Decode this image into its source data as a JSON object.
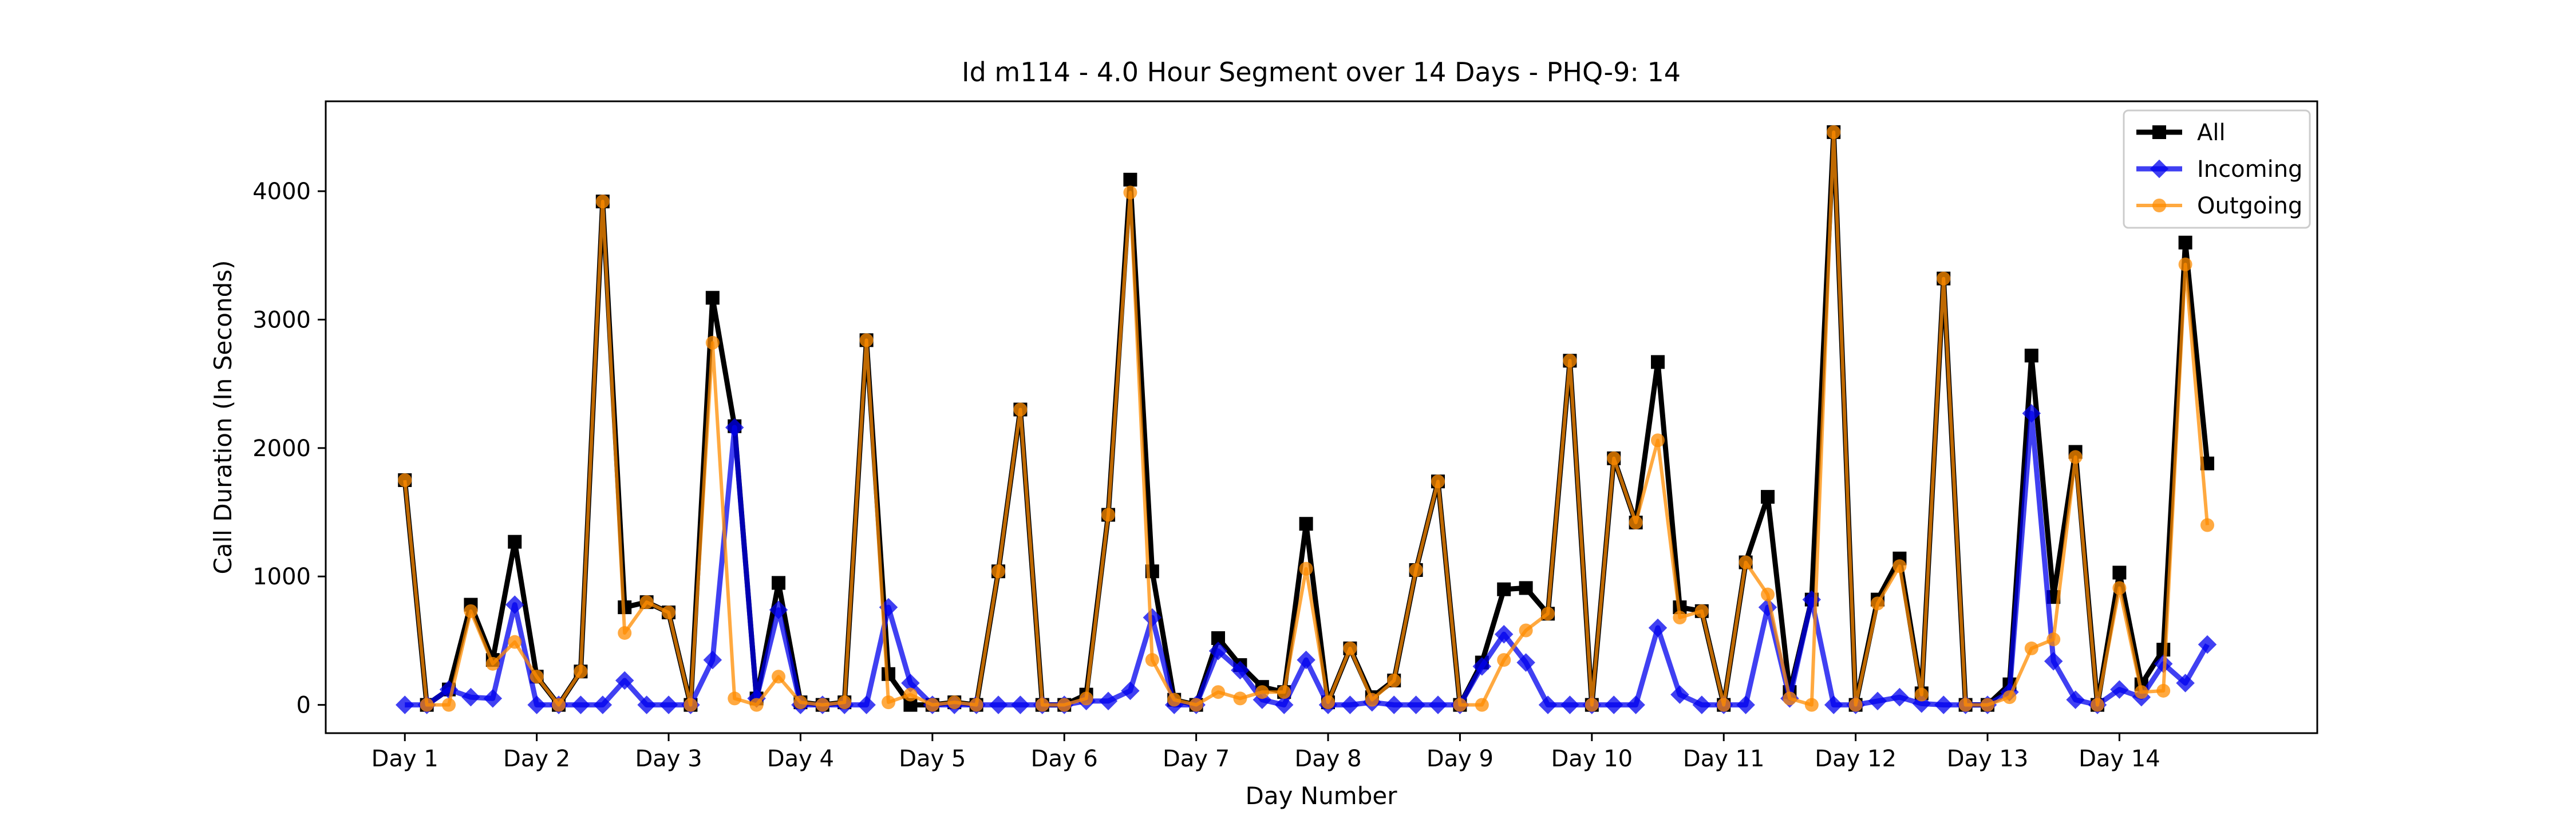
{
  "chart_data": {
    "type": "line",
    "title": "Id m114 - 4.0 Hour Segment over 14 Days - PHQ-9: 14",
    "xlabel": "Day Number",
    "ylabel": "Call Duration (In Seconds)",
    "xlim": [
      -0.6,
      14.5
    ],
    "ylim": [
      -220,
      4700
    ],
    "x_ticks": [
      {
        "value": 0,
        "label": "Day 1"
      },
      {
        "value": 1,
        "label": "Day 2"
      },
      {
        "value": 2,
        "label": "Day 3"
      },
      {
        "value": 3,
        "label": "Day 4"
      },
      {
        "value": 4,
        "label": "Day 5"
      },
      {
        "value": 5,
        "label": "Day 6"
      },
      {
        "value": 6,
        "label": "Day 7"
      },
      {
        "value": 7,
        "label": "Day 8"
      },
      {
        "value": 8,
        "label": "Day 9"
      },
      {
        "value": 9,
        "label": "Day 10"
      },
      {
        "value": 10,
        "label": "Day 11"
      },
      {
        "value": 11,
        "label": "Day 12"
      },
      {
        "value": 12,
        "label": "Day 13"
      },
      {
        "value": 13,
        "label": "Day 14"
      }
    ],
    "y_ticks": [
      {
        "value": 0,
        "label": "0"
      },
      {
        "value": 1000,
        "label": "1000"
      },
      {
        "value": 2000,
        "label": "2000"
      },
      {
        "value": 3000,
        "label": "3000"
      },
      {
        "value": 4000,
        "label": "4000"
      }
    ],
    "grid": false,
    "legend_position": "top-right",
    "x_step": 0.16666667,
    "series": [
      {
        "name": "All",
        "color": "#000000",
        "marker": "square",
        "values": [
          1750,
          0,
          120,
          780,
          350,
          1270,
          220,
          0,
          260,
          3920,
          760,
          800,
          720,
          0,
          3170,
          2170,
          50,
          950,
          20,
          0,
          20,
          2840,
          240,
          0,
          0,
          20,
          0,
          1040,
          2300,
          0,
          0,
          80,
          1480,
          4090,
          1040,
          40,
          0,
          520,
          310,
          140,
          100,
          1410,
          20,
          440,
          60,
          190,
          1050,
          1740,
          0,
          330,
          900,
          910,
          710,
          2680,
          0,
          1920,
          1420,
          2670,
          760,
          730,
          0,
          1110,
          1620,
          100,
          820,
          4460,
          0,
          820,
          1140,
          90,
          3320,
          0,
          0,
          160,
          2720,
          840,
          1970,
          0,
          1030,
          160,
          430,
          3600,
          1880
        ]
      },
      {
        "name": "Incoming",
        "color": "#0000ee",
        "marker": "diamond",
        "values": [
          0,
          0,
          120,
          60,
          50,
          780,
          0,
          0,
          0,
          0,
          190,
          0,
          0,
          0,
          350,
          2160,
          50,
          740,
          0,
          0,
          0,
          0,
          760,
          170,
          0,
          0,
          0,
          0,
          0,
          0,
          0,
          30,
          30,
          110,
          680,
          0,
          0,
          420,
          270,
          40,
          0,
          350,
          0,
          0,
          20,
          0,
          0,
          0,
          0,
          300,
          550,
          330,
          0,
          0,
          0,
          0,
          0,
          600,
          80,
          0,
          0,
          0,
          760,
          50,
          820,
          0,
          0,
          30,
          60,
          10,
          0,
          0,
          0,
          100,
          2270,
          340,
          40,
          0,
          120,
          60,
          320,
          170,
          470
        ]
      },
      {
        "name": "Outgoing",
        "color": "#ff8c00",
        "marker": "circle",
        "values": [
          1750,
          0,
          0,
          730,
          320,
          490,
          220,
          0,
          260,
          3920,
          560,
          800,
          720,
          0,
          2820,
          50,
          0,
          220,
          20,
          0,
          20,
          2840,
          20,
          80,
          0,
          20,
          0,
          1040,
          2300,
          0,
          0,
          50,
          1480,
          3990,
          350,
          40,
          0,
          100,
          50,
          100,
          100,
          1060,
          20,
          440,
          40,
          190,
          1050,
          1740,
          0,
          0,
          350,
          580,
          710,
          2680,
          0,
          1920,
          1420,
          2060,
          680,
          730,
          0,
          1110,
          860,
          50,
          0,
          4460,
          0,
          790,
          1080,
          80,
          3320,
          0,
          0,
          60,
          440,
          510,
          1930,
          0,
          910,
          100,
          110,
          3430,
          1400
        ]
      }
    ]
  }
}
